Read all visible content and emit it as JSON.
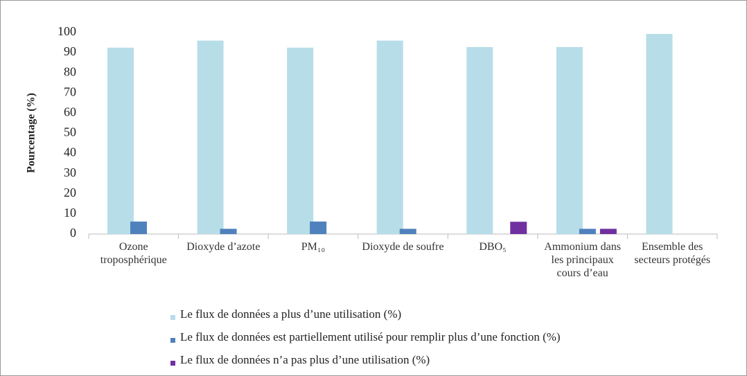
{
  "chart_data": {
    "type": "bar",
    "y_label": "Pourcentage (%)",
    "categories": [
      "Ozone troposphérique",
      "Dioxyde d’azote",
      "PM₁₀",
      "Dioxyde de soufre",
      "DBO₅",
      "Ammonium dans les principaux cours d’eau",
      "Ensemble des secteurs protégés"
    ],
    "series": [
      {
        "name": "Le flux de données a plus d’une utilisation (%)",
        "color": "#b7dde8",
        "values": [
          92.5,
          96,
          92.5,
          96,
          92.8,
          92.8,
          99.3
        ]
      },
      {
        "name": "Le flux de données est partiellement utilisé pour remplir plus d’une fonction (%)",
        "color": "#4f81bd",
        "values": [
          6.2,
          2.6,
          6.2,
          2.6,
          0,
          2.6,
          0
        ]
      },
      {
        "name": "Le flux de données n’a pas plus d’une utilisation (%)",
        "color": "#7030a0",
        "values": [
          0,
          0,
          0,
          0,
          6.1,
          2.6,
          0
        ]
      }
    ],
    "ylim": [
      0,
      100
    ],
    "yticks": [
      0,
      10,
      20,
      30,
      40,
      50,
      60,
      70,
      80,
      90,
      100
    ],
    "grid": false
  }
}
